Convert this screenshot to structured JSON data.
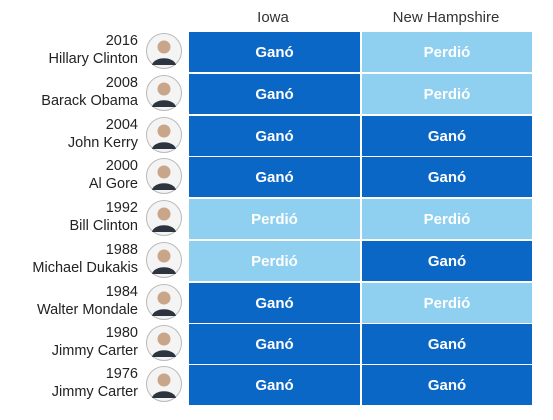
{
  "chart_data": {
    "type": "table",
    "columns": [
      "Iowa",
      "New Hampshire"
    ],
    "colors": {
      "win": "#0a67c6",
      "lose": "#8fd0f0"
    },
    "rows": [
      {
        "year": "2016",
        "name": "Hillary Clinton",
        "iowa": "Ganó",
        "nh": "Perdió",
        "photo": "hillary-clinton-portrait"
      },
      {
        "year": "2008",
        "name": "Barack Obama",
        "iowa": "Ganó",
        "nh": "Perdió",
        "photo": "barack-obama-portrait"
      },
      {
        "year": "2004",
        "name": "John Kerry",
        "iowa": "Ganó",
        "nh": "Ganó",
        "photo": "john-kerry-portrait"
      },
      {
        "year": "2000",
        "name": "Al Gore",
        "iowa": "Ganó",
        "nh": "Ganó",
        "photo": "al-gore-portrait"
      },
      {
        "year": "1992",
        "name": "Bill Clinton",
        "iowa": "Perdió",
        "nh": "Perdió",
        "photo": "bill-clinton-portrait"
      },
      {
        "year": "1988",
        "name": "Michael Dukakis",
        "iowa": "Perdió",
        "nh": "Ganó",
        "photo": "michael-dukakis-portrait"
      },
      {
        "year": "1984",
        "name": "Walter Mondale",
        "iowa": "Ganó",
        "nh": "Perdió",
        "photo": "walter-mondale-portrait"
      },
      {
        "year": "1980",
        "name": "Jimmy Carter",
        "iowa": "Ganó",
        "nh": "Ganó",
        "photo": "jimmy-carter-portrait"
      },
      {
        "year": "1976",
        "name": "Jimmy Carter",
        "iowa": "Ganó",
        "nh": "Ganó",
        "photo": "jimmy-carter-portrait"
      }
    ]
  }
}
